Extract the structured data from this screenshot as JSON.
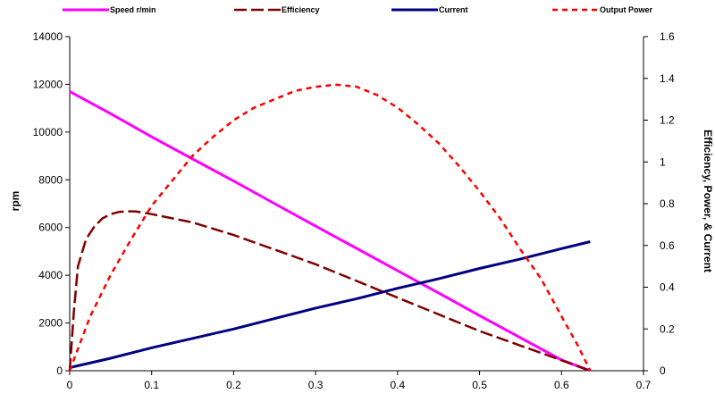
{
  "chart_data": {
    "type": "line",
    "title": "",
    "xlabel": "",
    "y_left_label": "rpm",
    "y_right_label": "Efficiency, Power, & Current",
    "xlim": [
      0,
      0.7
    ],
    "x_ticks": [
      "0",
      "0.1",
      "0.2",
      "0.3",
      "0.4",
      "0.5",
      "0.6",
      "0.7"
    ],
    "y_left_lim": [
      0,
      14000
    ],
    "y_left_ticks": [
      "0",
      "2000",
      "4000",
      "6000",
      "8000",
      "10000",
      "12000",
      "14000"
    ],
    "y_right_lim": [
      0,
      1.6
    ],
    "y_right_ticks": [
      "0",
      "0.2",
      "0.4",
      "0.6",
      "0.8",
      "1",
      "1.2",
      "1.4",
      "1.6"
    ],
    "grid": false,
    "legend_position": "top",
    "series": [
      {
        "name": "Speed r/min",
        "axis": "left",
        "color": "#ff00ff",
        "style": "solid",
        "x": [
          0,
          0.05,
          0.1,
          0.15,
          0.2,
          0.25,
          0.3,
          0.35,
          0.4,
          0.45,
          0.5,
          0.55,
          0.6,
          0.635
        ],
        "y": [
          11700,
          10770,
          9800,
          8870,
          7950,
          7000,
          6060,
          5130,
          4190,
          3260,
          2310,
          1380,
          450,
          0
        ]
      },
      {
        "name": "Efficiency",
        "axis": "right",
        "color": "#7f0000",
        "style": "longdash",
        "x": [
          0,
          0.005,
          0.01,
          0.02,
          0.03,
          0.04,
          0.05,
          0.06,
          0.07,
          0.08,
          0.1,
          0.15,
          0.2,
          0.25,
          0.3,
          0.35,
          0.4,
          0.45,
          0.5,
          0.55,
          0.6,
          0.635
        ],
        "y": [
          0,
          0.28,
          0.5,
          0.63,
          0.69,
          0.73,
          0.75,
          0.76,
          0.763,
          0.763,
          0.75,
          0.71,
          0.65,
          0.58,
          0.51,
          0.43,
          0.35,
          0.27,
          0.19,
          0.12,
          0.05,
          0
        ]
      },
      {
        "name": "Current",
        "axis": "right",
        "color": "#000080",
        "style": "solid",
        "x": [
          0,
          0.05,
          0.1,
          0.15,
          0.2,
          0.25,
          0.3,
          0.35,
          0.4,
          0.45,
          0.5,
          0.55,
          0.6,
          0.635
        ],
        "y": [
          0.015,
          0.06,
          0.11,
          0.155,
          0.2,
          0.25,
          0.3,
          0.345,
          0.395,
          0.44,
          0.49,
          0.535,
          0.585,
          0.618
        ]
      },
      {
        "name": "Output Power",
        "axis": "right",
        "color": "#ff0000",
        "style": "dash",
        "x": [
          0,
          0.025,
          0.05,
          0.075,
          0.1,
          0.125,
          0.15,
          0.175,
          0.2,
          0.225,
          0.25,
          0.275,
          0.3,
          0.325,
          0.35,
          0.375,
          0.4,
          0.425,
          0.45,
          0.475,
          0.5,
          0.525,
          0.55,
          0.575,
          0.6,
          0.62,
          0.635
        ],
        "y": [
          0,
          0.26,
          0.46,
          0.63,
          0.79,
          0.91,
          1.03,
          1.12,
          1.2,
          1.26,
          1.3,
          1.34,
          1.36,
          1.37,
          1.36,
          1.32,
          1.26,
          1.18,
          1.09,
          0.98,
          0.86,
          0.73,
          0.58,
          0.44,
          0.26,
          0.12,
          0
        ]
      }
    ]
  }
}
